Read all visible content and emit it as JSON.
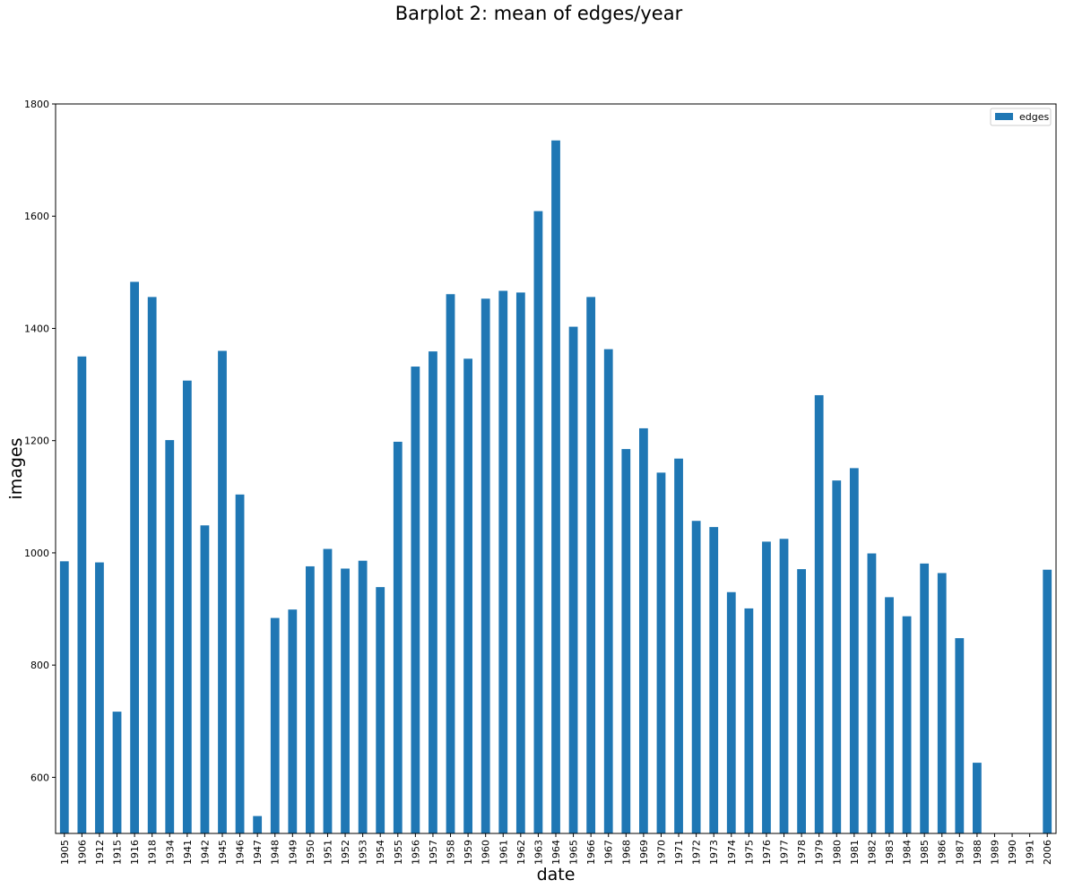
{
  "chart_data": {
    "type": "bar",
    "title": "Barplot 2: mean of edges/year",
    "xlabel": "date",
    "ylabel": "images",
    "ylim": [
      500,
      1800
    ],
    "yticks": [
      600,
      800,
      1000,
      1200,
      1400,
      1600,
      1800
    ],
    "grid": false,
    "legend_position": "top-right",
    "bar_color": "#1f77b4",
    "categories": [
      "1905",
      "1906",
      "1912",
      "1915",
      "1916",
      "1918",
      "1934",
      "1941",
      "1942",
      "1945",
      "1946",
      "1947",
      "1948",
      "1949",
      "1950",
      "1951",
      "1952",
      "1953",
      "1954",
      "1955",
      "1956",
      "1957",
      "1958",
      "1959",
      "1960",
      "1961",
      "1962",
      "1963",
      "1964",
      "1965",
      "1966",
      "1967",
      "1968",
      "1969",
      "1970",
      "1971",
      "1972",
      "1973",
      "1974",
      "1975",
      "1976",
      "1977",
      "1978",
      "1979",
      "1980",
      "1981",
      "1982",
      "1983",
      "1984",
      "1985",
      "1986",
      "1987",
      "1988",
      "1989",
      "1990",
      "1991",
      "2006"
    ],
    "series": [
      {
        "name": "edges",
        "values": [
          985,
          1350,
          983,
          717,
          1483,
          1456,
          1201,
          1307,
          1049,
          1360,
          1104,
          531,
          884,
          899,
          976,
          1007,
          972,
          986,
          939,
          1198,
          1332,
          1359,
          1461,
          1346,
          1453,
          1467,
          1464,
          1609,
          1735,
          1403,
          1456,
          1363,
          1185,
          1222,
          1143,
          1168,
          1057,
          1046,
          930,
          901,
          1020,
          1025,
          971,
          1281,
          1129,
          1151,
          999,
          921,
          887,
          981,
          964,
          848,
          626,
          null,
          null,
          null,
          970
        ]
      }
    ]
  }
}
